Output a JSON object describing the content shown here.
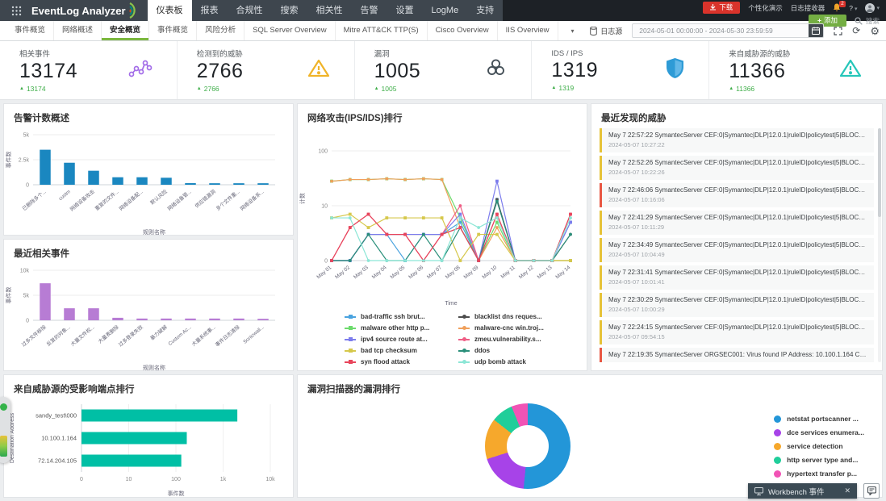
{
  "header": {
    "logo": "EventLog Analyzer",
    "nav": [
      {
        "label": "仪表板",
        "active": true
      },
      {
        "label": "报表",
        "active": false
      },
      {
        "label": "合规性",
        "active": false
      },
      {
        "label": "搜索",
        "active": false
      },
      {
        "label": "相关性",
        "active": false
      },
      {
        "label": "告警",
        "active": false
      },
      {
        "label": "设置",
        "active": false
      },
      {
        "label": "LogMe",
        "active": false
      },
      {
        "label": "支持",
        "active": false
      }
    ],
    "actions": {
      "download": "下载",
      "personal_demo": "个性化演示",
      "log_receiver": "日志接收器",
      "notification_count": "2",
      "help": "?",
      "add": "添加",
      "search": "搜索"
    }
  },
  "toolbar": {
    "tabs": [
      {
        "label": "事件概览",
        "active": false
      },
      {
        "label": "网络概述",
        "active": false
      },
      {
        "label": "安全概览",
        "active": true
      },
      {
        "label": "事件概览",
        "active": false
      },
      {
        "label": "风险分析",
        "active": false
      },
      {
        "label": "SQL Server Overview",
        "active": false
      },
      {
        "label": "Mitre ATT&CK TTP(S)",
        "active": false
      },
      {
        "label": "Cisco Overview",
        "active": false
      },
      {
        "label": "IIS Overview",
        "active": false
      }
    ],
    "log_source_label": "日志源",
    "date_range": "2024-05-01 00:00:00 - 2024-05-30 23:59:59"
  },
  "icons": {
    "gear": "⚙",
    "refresh": "⟳",
    "caret": "▾",
    "up_triangle": "▲",
    "plus": "+"
  },
  "stats": [
    {
      "label": "相关事件",
      "value": "13174",
      "delta": "13174",
      "icon": "correlation-icon",
      "color": "#a36de8"
    },
    {
      "label": "检测到的威胁",
      "value": "2766",
      "delta": "2766",
      "icon": "warning-triangle-icon",
      "color": "#f0b429"
    },
    {
      "label": "漏洞",
      "value": "1005",
      "delta": "1005",
      "icon": "biohazard-icon",
      "color": "#455058"
    },
    {
      "label": "IDS / IPS",
      "value": "1319",
      "delta": "1319",
      "icon": "shield-icon",
      "color": "#2e9bd6"
    },
    {
      "label": "来自威胁源的威胁",
      "value": "11366",
      "delta": "11366",
      "icon": "alert-triangle-icon",
      "color": "#26c6b9"
    }
  ],
  "chart_data": [
    {
      "id": "alerts_bar",
      "type": "bar",
      "title": "告警计数概述",
      "xlabel": "规则名称",
      "ylabel": "事件数",
      "ylim": [
        0,
        5000
      ],
      "yticks": [
        {
          "v": 0,
          "label": "0"
        },
        {
          "v": 2500,
          "label": "2.5k"
        },
        {
          "v": 5000,
          "label": "5k"
        }
      ],
      "color": "#1a87c0",
      "categories": [
        "已删除多个...",
        "custm",
        "网络设备攻击",
        "重复的文件...",
        "网络设备配...",
        "默认风险",
        "网络设备管...",
        "供应链漏洞",
        "多个文件重...",
        "网络设备系..."
      ],
      "values": [
        3500,
        2200,
        1400,
        750,
        750,
        700,
        160,
        150,
        150,
        150
      ]
    },
    {
      "id": "recent_bar",
      "type": "bar",
      "title": "最近相关事件",
      "xlabel": "规则名称",
      "ylabel": "事件数",
      "ylim": [
        0,
        10000
      ],
      "yticks": [
        {
          "v": 0,
          "label": "0"
        },
        {
          "v": 5000,
          "label": "5k"
        },
        {
          "v": 10000,
          "label": "10k"
        }
      ],
      "color": "#b77cd4",
      "categories": [
        "过多文件移除",
        "反复的对象...",
        "大量文件权...",
        "大量表删除",
        "过多登录失败",
        "暴力破解",
        "Custom Ac...",
        "大量系统事...",
        "事件日志清除",
        "Sonicwall..."
      ],
      "values": [
        7400,
        2400,
        2400,
        500,
        350,
        350,
        350,
        350,
        350,
        300
      ]
    },
    {
      "id": "attacks_line",
      "type": "line",
      "title": "网络攻击(IPS/IDS)排行",
      "xlabel": "Time",
      "ylabel": "计数",
      "yscale": "log",
      "yticks": [
        {
          "v": 0,
          "label": "0"
        },
        {
          "v": 10,
          "label": "10"
        },
        {
          "v": 100,
          "label": "100"
        }
      ],
      "x": [
        "May 01",
        "May 02",
        "May 03",
        "May 04",
        "May 05",
        "May 06",
        "May 07",
        "May 08",
        "May 09",
        "May 10",
        "May 11",
        "May 12",
        "May 13",
        "May 14"
      ],
      "series": [
        {
          "name": "bad-traffic ssh brut...",
          "color": "#4aa3df",
          "values": [
            0,
            0,
            3,
            3,
            0,
            3,
            3,
            5,
            0,
            13,
            0,
            0,
            0,
            5
          ]
        },
        {
          "name": "blacklist dns reques...",
          "color": "#4d4d4d",
          "values": [
            0,
            0,
            3,
            3,
            3,
            3,
            3,
            4,
            0,
            13,
            0,
            0,
            0,
            3
          ]
        },
        {
          "name": "malware other http p...",
          "color": "#6ddb6d",
          "values": [
            28,
            30,
            30,
            31,
            30,
            31,
            30,
            6,
            0,
            5,
            0,
            0,
            0,
            0
          ]
        },
        {
          "name": "malware-cnc win.troj...",
          "color": "#f0a05c",
          "values": [
            28,
            30,
            30,
            31,
            30,
            31,
            30,
            4,
            0,
            4,
            0,
            0,
            0,
            0
          ]
        },
        {
          "name": "ipv4 source route at...",
          "color": "#7d7ded",
          "values": [
            0,
            0,
            3,
            3,
            3,
            3,
            3,
            7,
            0,
            28,
            0,
            0,
            0,
            5
          ]
        },
        {
          "name": "zmeu.vulnerability.s...",
          "color": "#ef5e85",
          "values": [
            0,
            4,
            7,
            3,
            3,
            0,
            3,
            10,
            0,
            7,
            0,
            0,
            0,
            7
          ]
        },
        {
          "name": "bad tcp checksum",
          "color": "#d6c84c",
          "values": [
            6,
            7,
            4,
            6,
            6,
            6,
            6,
            0,
            3,
            3,
            0,
            0,
            0,
            0
          ]
        },
        {
          "name": "ddos",
          "color": "#2a8f7a",
          "values": [
            0,
            0,
            3,
            0,
            0,
            3,
            0,
            4,
            0,
            12,
            0,
            0,
            0,
            3
          ]
        },
        {
          "name": "syn flood attack",
          "color": "#e8455c",
          "values": [
            0,
            4,
            7,
            3,
            3,
            0,
            3,
            4,
            0,
            7,
            0,
            0,
            0,
            7
          ]
        },
        {
          "name": "udp bomb attack",
          "color": "#8ce6d6",
          "values": [
            6,
            6,
            0,
            0,
            0,
            0,
            0,
            6,
            4,
            6,
            0,
            0,
            0,
            6
          ]
        }
      ]
    },
    {
      "id": "endpoints_hbar",
      "type": "bar",
      "title": "来自威胁源的受影响端点排行",
      "orientation": "horizontal",
      "xlabel": "事件数",
      "ylabel": "Destination Address",
      "xscale": "log",
      "xticks": [
        {
          "v": 0,
          "label": "0"
        },
        {
          "v": 10,
          "label": "10"
        },
        {
          "v": 100,
          "label": "100"
        },
        {
          "v": 1000,
          "label": "1k"
        },
        {
          "v": 10000,
          "label": "10k"
        }
      ],
      "color": "#00bfa5",
      "categories": [
        "sandy_test\\000",
        "10.100.1.164",
        "72.14.204.105"
      ],
      "values": [
        2000,
        170,
        130
      ]
    },
    {
      "id": "vuln_donut",
      "type": "pie",
      "title": "漏洞扫描器的漏洞排行",
      "labels": [
        "netstat portscanner ...",
        "dce services enumera...",
        "service detection",
        "http server type and...",
        "hypertext transfer p..."
      ],
      "values": [
        50,
        18,
        15,
        8,
        6
      ],
      "colors": [
        "#2396d8",
        "#a743e8",
        "#f6a82c",
        "#20ce9a",
        "#f153b5"
      ]
    }
  ],
  "threats": {
    "title": "最近发现的威胁",
    "items": [
      {
        "message": "May 7 22:57:22 SymantecServer CEF:0|Symantec|DLP|12.0.1|ruleID|policytest|5|BLOCKED=No Re...",
        "time": "2024-05-07 10:27:22",
        "severity": "yellow"
      },
      {
        "message": "May 7 22:52:26 SymantecServer CEF:0|Symantec|DLP|12.0.1|ruleID|policytest|5|BLOCKED=No Re...",
        "time": "2024-05-07 10:22:26",
        "severity": "yellow"
      },
      {
        "message": "May 7 22:46:06 SymantecServer CEF:0|Symantec|DLP|12.0.1|ruleID|policytest|5|BLOCKED=No Re...",
        "time": "2024-05-07 10:16:06",
        "severity": "red"
      },
      {
        "message": "May 7 22:41:29 SymantecServer CEF:0|Symantec|DLP|12.0.1|ruleID|policytest|5|BLOCKED=No Re...",
        "time": "2024-05-07 10:11:29",
        "severity": "yellow"
      },
      {
        "message": "May 7 22:34:49 SymantecServer CEF:0|Symantec|DLP|12.0.1|ruleID|policytest|5|BLOCKED=No Re...",
        "time": "2024-05-07 10:04:49",
        "severity": "yellow"
      },
      {
        "message": "May 7 22:31:41 SymantecServer CEF:0|Symantec|DLP|12.0.1|ruleID|policytest|5|BLOCKED=No Re...",
        "time": "2024-05-07 10:01:41",
        "severity": "yellow"
      },
      {
        "message": "May 7 22:30:29 SymantecServer CEF:0|Symantec|DLP|12.0.1|ruleID|policytest|5|BLOCKED=No Re...",
        "time": "2024-05-07 10:00:29",
        "severity": "yellow"
      },
      {
        "message": "May 7 22:24:15 SymantecServer CEF:0|Symantec|DLP|12.0.1|ruleID|policytest|5|BLOCKED=No Re...",
        "time": "2024-05-07 09:54:15",
        "severity": "yellow"
      },
      {
        "message": "May 7 22:19:35 SymantecServer ORGSEC001: Virus found IP Address: 10.100.1.164 Comp...",
        "time": "",
        "severity": "red"
      }
    ]
  },
  "workbench": {
    "label": "Workbench 事件",
    "close_glyph": "✕"
  }
}
